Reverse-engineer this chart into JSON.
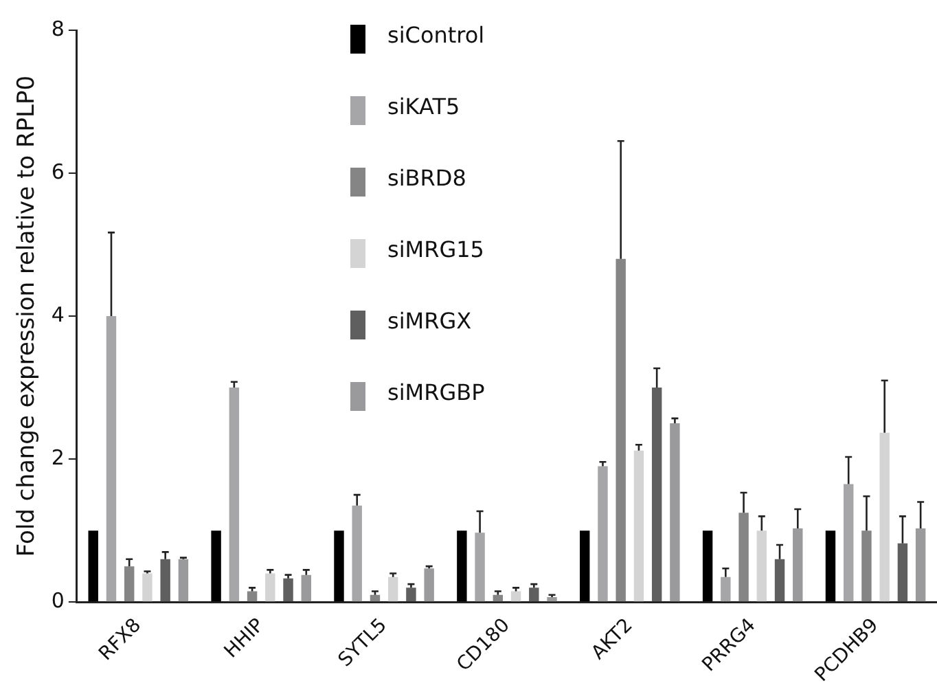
{
  "chart_data": {
    "type": "bar",
    "ylabel": "Fold change expression relative to RPLP0",
    "categories": [
      "RFX8",
      "HHIP",
      "SYTL5",
      "CD180",
      "AKT2",
      "PRRG4",
      "PCDHB9"
    ],
    "series": [
      {
        "name": "siControl",
        "color": "#000000",
        "values": [
          1,
          1,
          1,
          1,
          1,
          1,
          1
        ]
      },
      {
        "name": "siKAT5",
        "color": "#a6a6a8",
        "values": [
          4.0,
          3.0,
          1.35,
          0.97,
          1.9,
          0.35,
          1.65
        ],
        "errors": [
          [
            4.0,
            5.17
          ],
          [
            3.0,
            3.08
          ],
          [
            1.35,
            1.5
          ],
          [
            0.97,
            1.27
          ],
          [
            1.9,
            1.96
          ],
          [
            0.35,
            0.47
          ],
          [
            1.65,
            2.03
          ]
        ]
      },
      {
        "name": "siBRD8",
        "color": "#858585",
        "values": [
          0.5,
          0.15,
          0.1,
          0.1,
          4.8,
          1.25,
          1.0
        ],
        "errors": [
          [
            0.5,
            0.6
          ],
          [
            0.15,
            0.2
          ],
          [
            0.1,
            0.15
          ],
          [
            0.1,
            0.15
          ],
          [
            4.8,
            6.45
          ],
          [
            1.25,
            1.53
          ],
          [
            1.0,
            1.48
          ]
        ]
      },
      {
        "name": "siMRG15",
        "color": "#d4d4d4",
        "values": [
          0.4,
          0.4,
          0.35,
          0.15,
          2.12,
          1.0,
          2.37
        ],
        "errors": [
          [
            0.4,
            0.43
          ],
          [
            0.4,
            0.45
          ],
          [
            0.35,
            0.4
          ],
          [
            0.15,
            0.2
          ],
          [
            2.12,
            2.2
          ],
          [
            1.0,
            1.2
          ],
          [
            2.37,
            3.1
          ]
        ]
      },
      {
        "name": "siMRGX",
        "color": "#5f5f5f",
        "values": [
          0.6,
          0.33,
          0.2,
          0.2,
          3.0,
          0.6,
          0.82
        ],
        "errors": [
          [
            0.6,
            0.7
          ],
          [
            0.33,
            0.38
          ],
          [
            0.2,
            0.25
          ],
          [
            0.2,
            0.25
          ],
          [
            3.0,
            3.27
          ],
          [
            0.6,
            0.8
          ],
          [
            0.82,
            1.2
          ]
        ]
      },
      {
        "name": "siMRGBP",
        "color": "#9a9a9c",
        "values": [
          0.6,
          0.38,
          0.47,
          0.07,
          2.5,
          1.03,
          1.03
        ],
        "errors": [
          [
            0.6,
            0.62
          ],
          [
            0.38,
            0.45
          ],
          [
            0.47,
            0.5
          ],
          [
            0.07,
            0.1
          ],
          [
            2.5,
            2.57
          ],
          [
            1.03,
            1.3
          ],
          [
            1.03,
            1.4
          ]
        ]
      }
    ],
    "ylim": [
      0,
      8
    ],
    "yticks": [
      0,
      2,
      4,
      6,
      8
    ],
    "grid": false,
    "legend": "top"
  }
}
